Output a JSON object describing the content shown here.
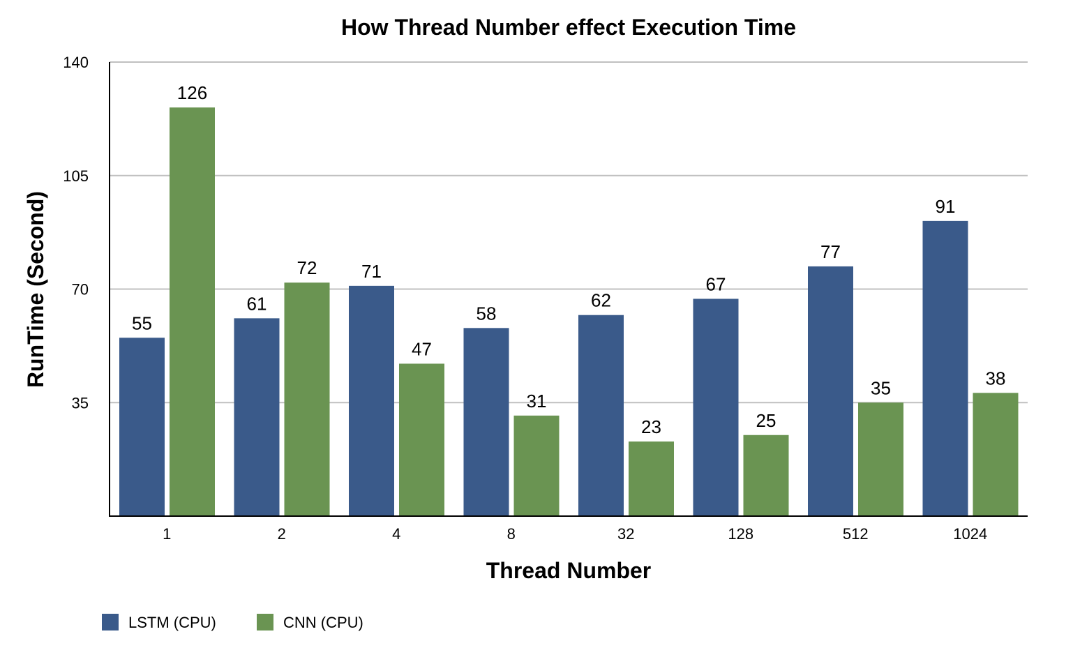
{
  "chart_data": {
    "type": "bar",
    "title": "How Thread Number effect Execution Time",
    "xlabel": "Thread Number",
    "ylabel": "RunTime (Second)",
    "categories": [
      "1",
      "2",
      "4",
      "8",
      "32",
      "128",
      "512",
      "1024"
    ],
    "series": [
      {
        "name": "LSTM (CPU)",
        "color": "#3a5a8a",
        "values": [
          55,
          61,
          71,
          58,
          62,
          67,
          77,
          91
        ]
      },
      {
        "name": "CNN (CPU)",
        "color": "#6a9452",
        "values": [
          126,
          72,
          47,
          31,
          23,
          25,
          35,
          38
        ]
      }
    ],
    "ylim": [
      0,
      140
    ],
    "yticks": [
      "35",
      "70",
      "105",
      "140"
    ],
    "grid": true,
    "legend_position": "bottom-left"
  }
}
